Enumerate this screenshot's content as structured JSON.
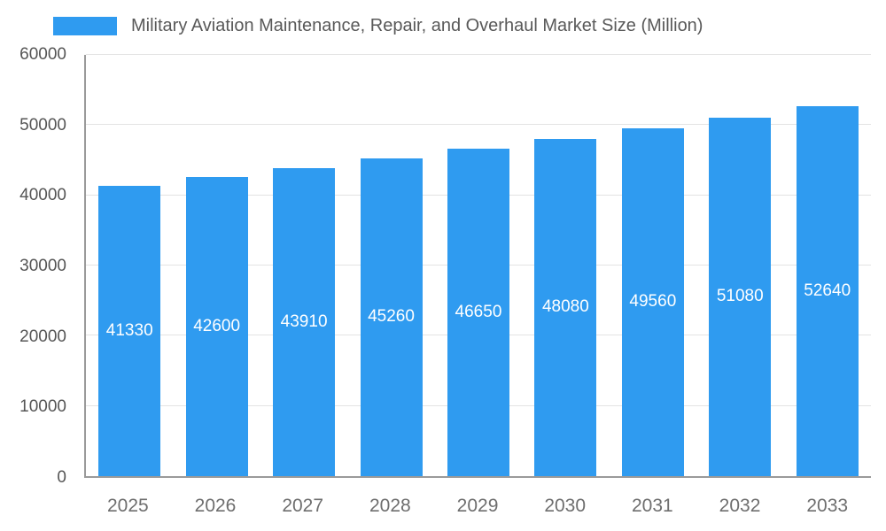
{
  "chart_data": {
    "type": "bar",
    "title": "Military Aviation Maintenance, Repair, and Overhaul Market Size (Million)",
    "categories": [
      "2025",
      "2026",
      "2027",
      "2028",
      "2029",
      "2030",
      "2031",
      "2032",
      "2033"
    ],
    "values": [
      41330,
      42600,
      43910,
      45260,
      46650,
      48080,
      49560,
      51080,
      52640
    ],
    "xlabel": "",
    "ylabel": "",
    "ylim": [
      0,
      60000
    ],
    "ytick_step": 10000,
    "yticks": [
      "0",
      "10000",
      "20000",
      "30000",
      "40000",
      "50000",
      "60000"
    ],
    "grid": true,
    "legend_position": "top-left",
    "bar_color": "#2f9bf0",
    "value_label_color": "#ffffff",
    "value_label_position": "center-of-bar"
  }
}
